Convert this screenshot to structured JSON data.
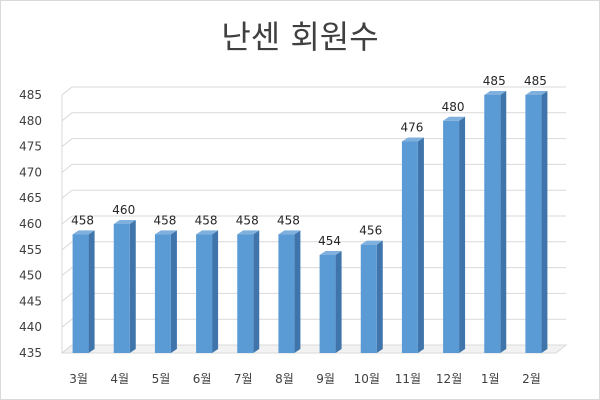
{
  "chart_data": {
    "type": "bar",
    "title": "난센 회원수",
    "categories": [
      "3월",
      "4월",
      "5월",
      "6월",
      "7월",
      "8월",
      "9월",
      "10월",
      "11월",
      "12월",
      "1월",
      "2월"
    ],
    "values": [
      458,
      460,
      458,
      458,
      458,
      458,
      454,
      456,
      476,
      480,
      485,
      485
    ],
    "ylim": [
      435,
      485
    ],
    "yticks": [
      435,
      440,
      445,
      450,
      455,
      460,
      465,
      470,
      475,
      480,
      485
    ],
    "xlabel": "",
    "ylabel": "",
    "grid": true,
    "legend": "none",
    "data_labels": true,
    "style": "3d-column",
    "colors": {
      "bar_front": "#5b9bd5",
      "bar_side": "#3f75ab",
      "bar_top": "#7fb0de",
      "grid": "#d9d9d9",
      "text": "#404040"
    }
  }
}
